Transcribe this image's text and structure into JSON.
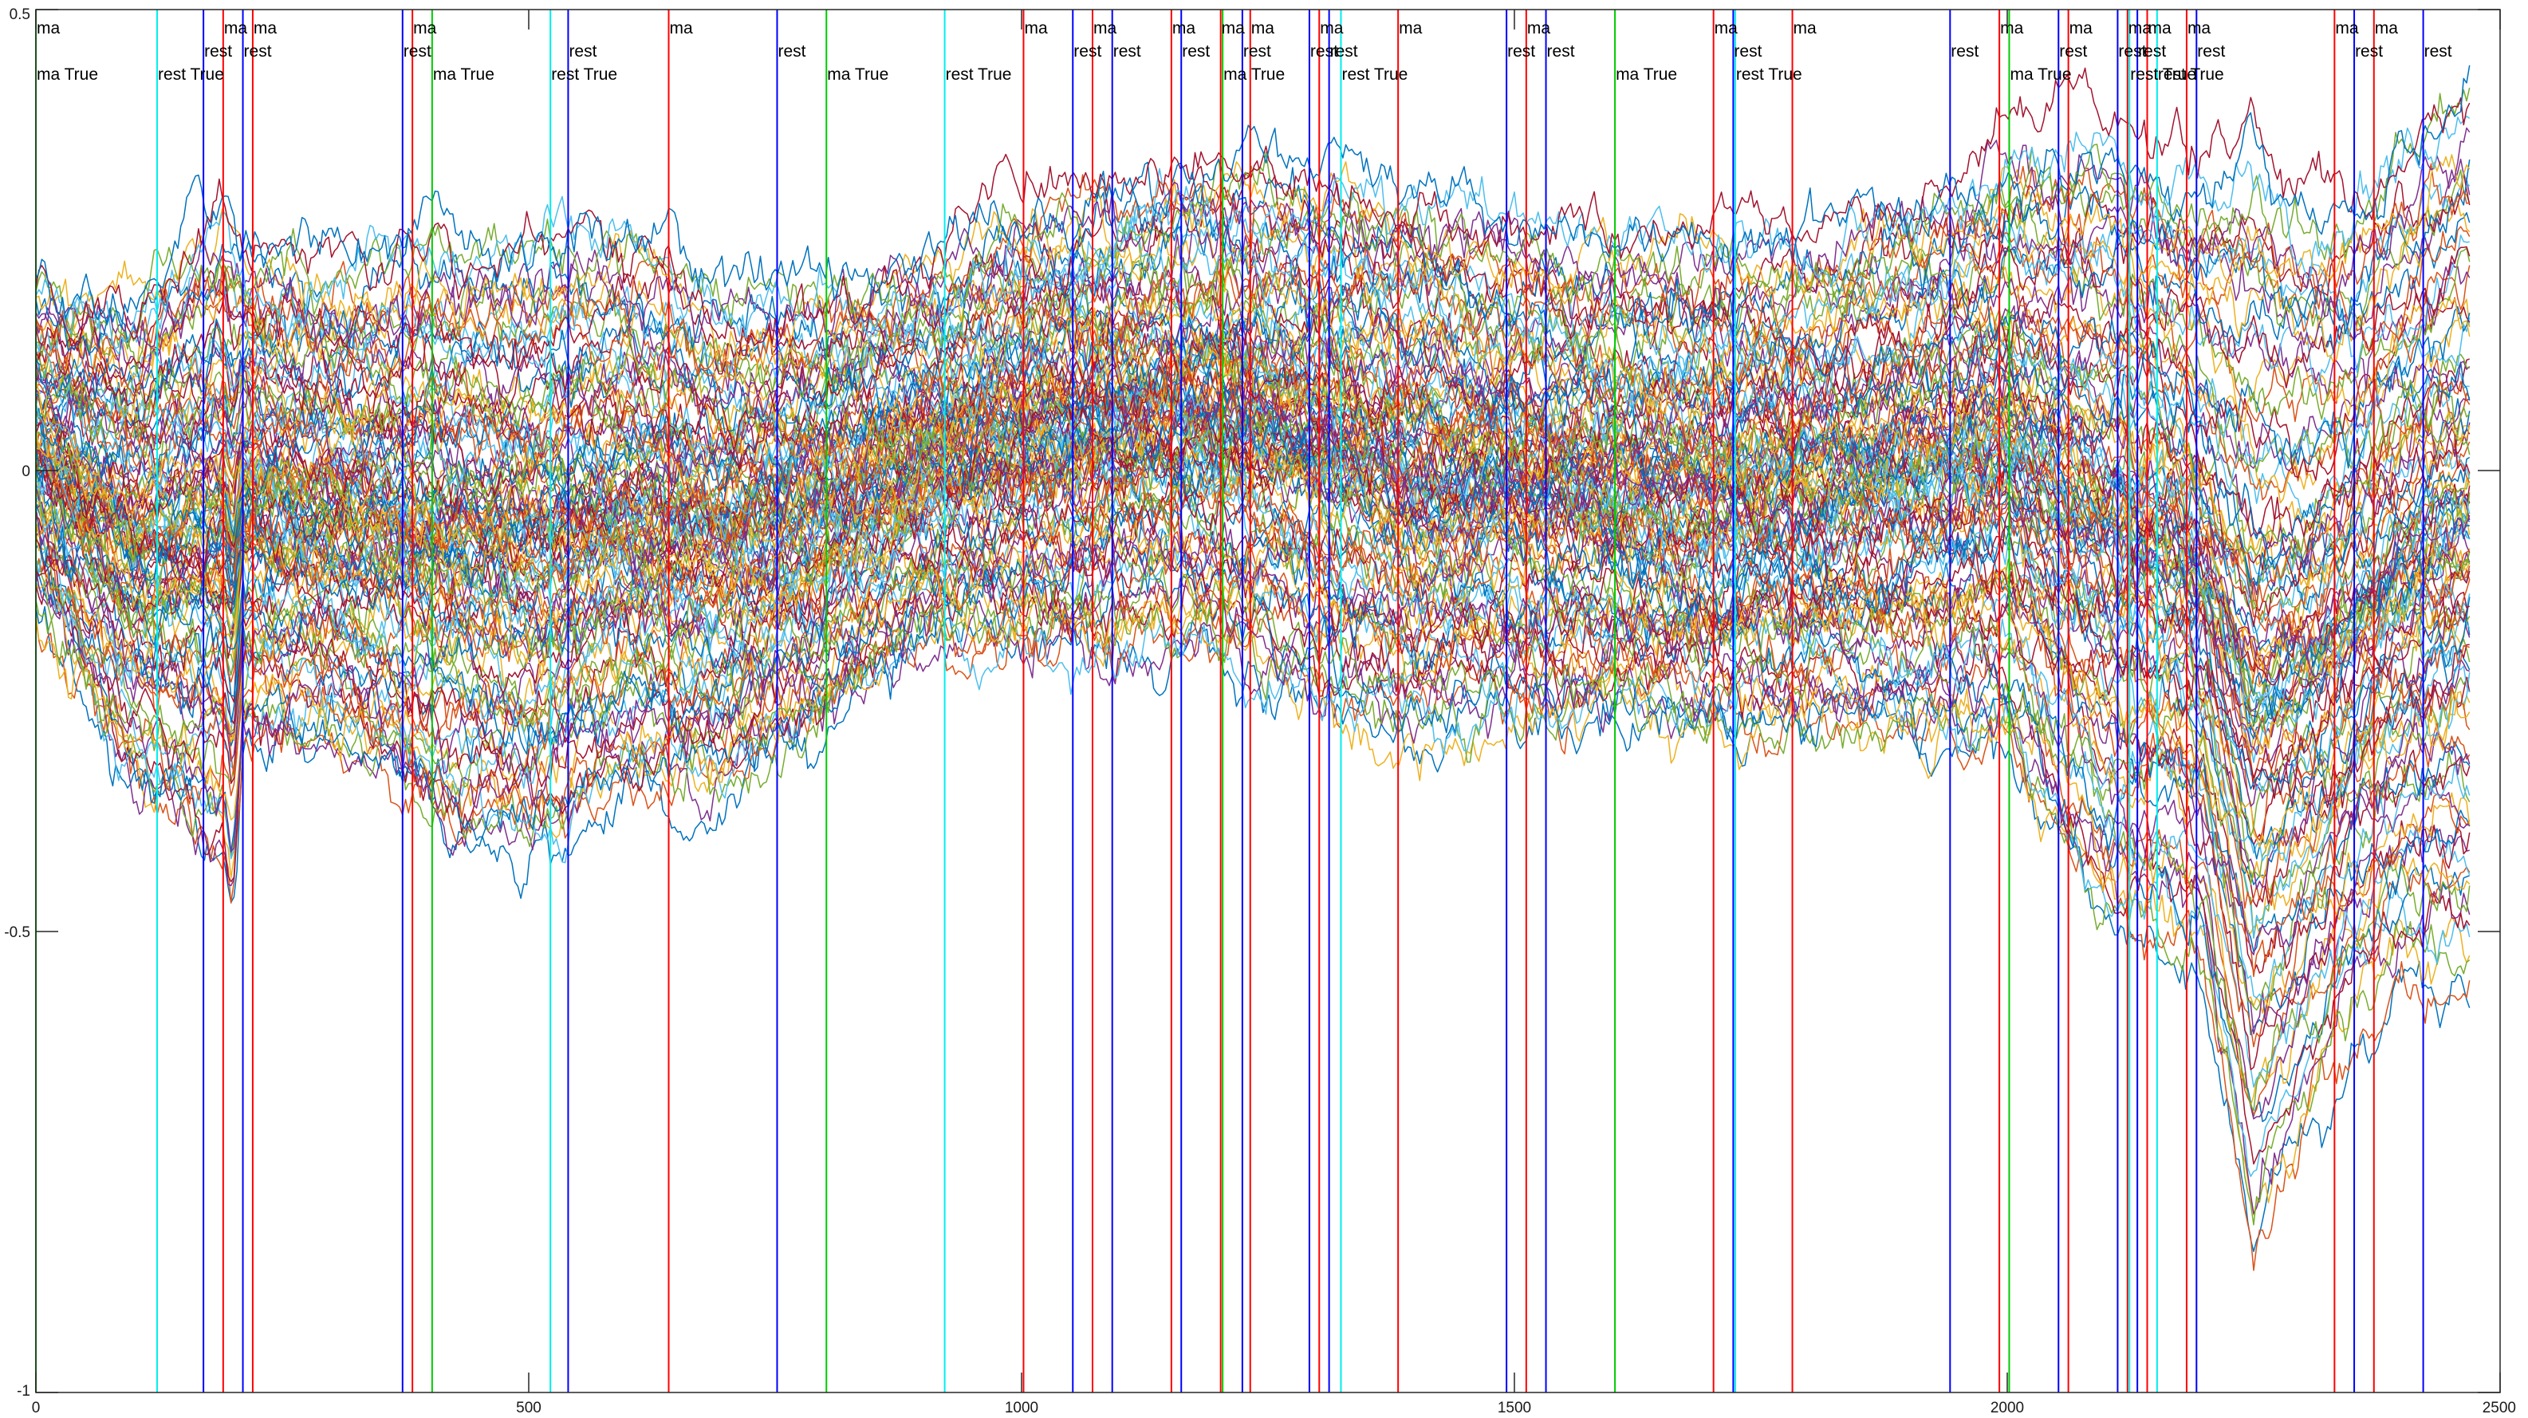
{
  "chart_data": {
    "type": "line",
    "title": "",
    "xlabel": "",
    "ylabel": "",
    "xlim": [
      0,
      2500
    ],
    "ylim": [
      -1,
      0.5
    ],
    "x_ticks": [
      0,
      500,
      1000,
      1500,
      2000,
      2500
    ],
    "x_tick_labels": [
      "0",
      "500",
      "1000",
      "1500",
      "2000",
      "2500"
    ],
    "y_ticks": [
      -1,
      -0.5,
      0,
      0.5
    ],
    "y_tick_labels": [
      "-1",
      "-0.5",
      "0",
      "0.5"
    ],
    "grid": false,
    "legend": "none",
    "n_samples": 2472,
    "series_count": 120,
    "series_palette": [
      "#0072BD",
      "#D95319",
      "#EDB120",
      "#7E2F8E",
      "#77AC30",
      "#4DBEEE",
      "#A2142F"
    ],
    "envelope": {
      "x": [
        0,
        100,
        190,
        200,
        210,
        300,
        400,
        500,
        600,
        700,
        800,
        900,
        1000,
        1100,
        1200,
        1300,
        1400,
        1500,
        1600,
        1700,
        1800,
        1900,
        2000,
        2050,
        2100,
        2150,
        2200,
        2250,
        2300,
        2350,
        2400,
        2460
      ],
      "upper": [
        0.2,
        0.2,
        0.3,
        0.28,
        0.25,
        0.22,
        0.25,
        0.25,
        0.25,
        0.2,
        0.2,
        0.22,
        0.28,
        0.3,
        0.32,
        0.32,
        0.3,
        0.28,
        0.25,
        0.25,
        0.25,
        0.3,
        0.35,
        0.36,
        0.38,
        0.35,
        0.33,
        0.36,
        0.3,
        0.3,
        0.35,
        0.42
      ],
      "lower": [
        -0.15,
        -0.35,
        -0.42,
        -0.47,
        -0.3,
        -0.3,
        -0.38,
        -0.42,
        -0.35,
        -0.35,
        -0.28,
        -0.2,
        -0.2,
        -0.2,
        -0.2,
        -0.25,
        -0.3,
        -0.28,
        -0.28,
        -0.3,
        -0.28,
        -0.3,
        -0.3,
        -0.4,
        -0.5,
        -0.5,
        -0.55,
        -0.85,
        -0.72,
        -0.62,
        -0.55,
        -0.55
      ]
    },
    "markers": [
      {
        "x": 0,
        "color": "#00cc00",
        "labels": [
          "ma",
          "ma True"
        ]
      },
      {
        "x": 123,
        "color": "#00eeee",
        "labels": [
          "rest True"
        ]
      },
      {
        "x": 170,
        "color": "#0000ff",
        "labels": [
          "rest"
        ]
      },
      {
        "x": 190,
        "color": "#ff0000",
        "labels": [
          "ma"
        ]
      },
      {
        "x": 210,
        "color": "#0000ff",
        "labels": [
          "rest"
        ]
      },
      {
        "x": 220,
        "color": "#ff0000",
        "labels": [
          "ma"
        ]
      },
      {
        "x": 372,
        "color": "#0000ff",
        "labels": [
          "rest"
        ]
      },
      {
        "x": 382,
        "color": "#ff0000",
        "labels": [
          "ma"
        ]
      },
      {
        "x": 402,
        "color": "#00cc00",
        "labels": [
          "ma True"
        ]
      },
      {
        "x": 522,
        "color": "#00eeee",
        "labels": [
          "rest True"
        ]
      },
      {
        "x": 540,
        "color": "#0000ff",
        "labels": [
          "rest"
        ]
      },
      {
        "x": 642,
        "color": "#ff0000",
        "labels": [
          "ma"
        ]
      },
      {
        "x": 752,
        "color": "#0000ff",
        "labels": [
          "rest"
        ]
      },
      {
        "x": 802,
        "color": "#00cc00",
        "labels": [
          "ma True"
        ]
      },
      {
        "x": 922,
        "color": "#00eeee",
        "labels": [
          "rest True"
        ]
      },
      {
        "x": 1002,
        "color": "#ff0000",
        "labels": [
          "ma"
        ]
      },
      {
        "x": 1052,
        "color": "#0000ff",
        "labels": [
          "rest"
        ]
      },
      {
        "x": 1072,
        "color": "#ff0000",
        "labels": [
          "ma"
        ]
      },
      {
        "x": 1092,
        "color": "#0000ff",
        "labels": [
          "rest"
        ]
      },
      {
        "x": 1152,
        "color": "#ff0000",
        "labels": [
          "ma"
        ]
      },
      {
        "x": 1162,
        "color": "#0000ff",
        "labels": [
          "rest"
        ]
      },
      {
        "x": 1202,
        "color": "#ff0000",
        "labels": [
          "ma"
        ]
      },
      {
        "x": 1204,
        "color": "#00cc00",
        "labels": [
          "ma True"
        ]
      },
      {
        "x": 1224,
        "color": "#0000ff",
        "labels": [
          "rest"
        ]
      },
      {
        "x": 1232,
        "color": "#ff0000",
        "labels": [
          "ma"
        ]
      },
      {
        "x": 1292,
        "color": "#0000ff",
        "labels": [
          "rest"
        ]
      },
      {
        "x": 1302,
        "color": "#ff0000",
        "labels": [
          "ma"
        ]
      },
      {
        "x": 1312,
        "color": "#0000ff",
        "labels": [
          "rest"
        ]
      },
      {
        "x": 1324,
        "color": "#00eeee",
        "labels": [
          "rest True"
        ]
      },
      {
        "x": 1382,
        "color": "#ff0000",
        "labels": [
          "ma"
        ]
      },
      {
        "x": 1492,
        "color": "#0000ff",
        "labels": [
          "rest"
        ]
      },
      {
        "x": 1512,
        "color": "#ff0000",
        "labels": [
          "ma"
        ]
      },
      {
        "x": 1532,
        "color": "#0000ff",
        "labels": [
          "rest"
        ]
      },
      {
        "x": 1602,
        "color": "#00cc00",
        "labels": [
          "ma True"
        ]
      },
      {
        "x": 1702,
        "color": "#ff0000",
        "labels": [
          "ma"
        ]
      },
      {
        "x": 1722,
        "color": "#0000ff",
        "labels": [
          "rest"
        ]
      },
      {
        "x": 1724,
        "color": "#00eeee",
        "labels": [
          "rest True"
        ]
      },
      {
        "x": 1782,
        "color": "#ff0000",
        "labels": [
          "ma"
        ]
      },
      {
        "x": 1942,
        "color": "#0000ff",
        "labels": [
          "rest"
        ]
      },
      {
        "x": 1992,
        "color": "#ff0000",
        "labels": [
          "ma"
        ]
      },
      {
        "x": 2002,
        "color": "#00cc00",
        "labels": [
          "ma True"
        ]
      },
      {
        "x": 2052,
        "color": "#0000ff",
        "labels": [
          "rest"
        ]
      },
      {
        "x": 2062,
        "color": "#ff0000",
        "labels": [
          "ma"
        ]
      },
      {
        "x": 2112,
        "color": "#0000ff",
        "labels": [
          "rest"
        ]
      },
      {
        "x": 2122,
        "color": "#ff0000",
        "labels": [
          "ma"
        ]
      },
      {
        "x": 2124,
        "color": "#00eeee",
        "labels": [
          "rest True"
        ]
      },
      {
        "x": 2132,
        "color": "#0000ff",
        "labels": [
          "rest"
        ]
      },
      {
        "x": 2142,
        "color": "#ff0000",
        "labels": [
          "ma"
        ]
      },
      {
        "x": 2152,
        "color": "#00eeee",
        "labels": [
          "rest True"
        ]
      },
      {
        "x": 2182,
        "color": "#ff0000",
        "labels": [
          "ma"
        ]
      },
      {
        "x": 2192,
        "color": "#0000ff",
        "labels": [
          "rest"
        ]
      },
      {
        "x": 2332,
        "color": "#ff0000",
        "labels": [
          "ma"
        ]
      },
      {
        "x": 2352,
        "color": "#0000ff",
        "labels": [
          "rest"
        ]
      },
      {
        "x": 2372,
        "color": "#ff0000",
        "labels": [
          "ma"
        ]
      },
      {
        "x": 2422,
        "color": "#0000ff",
        "labels": [
          "rest"
        ]
      }
    ]
  }
}
